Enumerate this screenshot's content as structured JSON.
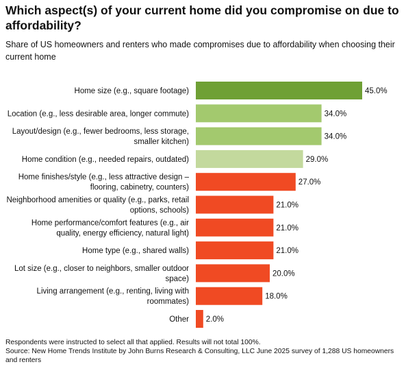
{
  "title": "Which aspect(s) of your current home did you compromise on due to affordability?",
  "subtitle": "Share of US homeowners and renters who made compromises due to affordability when choosing their current home",
  "note": "Respondents were instructed to select all that applied. Results will not total 100%.",
  "source": "Source: New Home Trends Institute by John Burns Research & Consulting, LLC June 2025 survey of 1,288 US homeowners and renters",
  "chart_data": {
    "type": "bar",
    "orientation": "horizontal",
    "xlim": [
      0,
      45
    ],
    "grid": false,
    "legend": "none",
    "categories": [
      [
        "Home size (e.g., square footage)"
      ],
      [
        "Location (e.g., less desirable area, longer commute)"
      ],
      [
        "Layout/design (e.g., fewer bedrooms, less storage,",
        "smaller kitchen)"
      ],
      [
        "Home condition (e.g., needed repairs, outdated)"
      ],
      [
        "Home finishes/style (e.g., less attractive design –",
        "flooring, cabinetry, counters)"
      ],
      [
        "Neighborhood amenities or quality (e.g., parks, retail",
        "options, schools)"
      ],
      [
        "Home performance/comfort features (e.g., air",
        "quality, energy efficiency, natural light)"
      ],
      [
        "Home type (e.g., shared walls)"
      ],
      [
        "Lot size (e.g., closer to neighbors, smaller outdoor",
        "space)"
      ],
      [
        "Living arrangement (e.g., renting, living with",
        "roommates)"
      ],
      [
        "Other"
      ]
    ],
    "values": [
      45.0,
      34.0,
      34.0,
      29.0,
      27.0,
      21.0,
      21.0,
      21.0,
      20.0,
      18.0,
      2.0
    ],
    "data_labels": [
      "45.0%",
      "34.0%",
      "34.0%",
      "29.0%",
      "27.0%",
      "21.0%",
      "21.0%",
      "21.0%",
      "20.0%",
      "18.0%",
      "2.0%"
    ],
    "colors": [
      "#6fa035",
      "#a3c96e",
      "#a3c96e",
      "#c3d99d",
      "#f04a23",
      "#f04a23",
      "#f04a23",
      "#f04a23",
      "#f04a23",
      "#f04a23",
      "#f04a23"
    ]
  }
}
